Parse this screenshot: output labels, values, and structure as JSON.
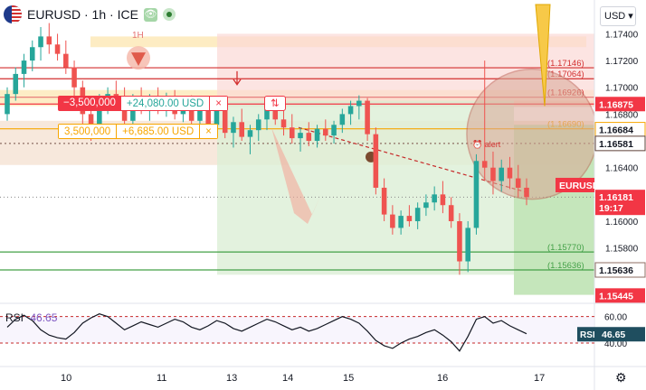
{
  "header": {
    "symbol": "EURUSD · 1h · ICE",
    "eye_icon": "eye-icon",
    "status_icon": "market-status-dot",
    "currency": "USD",
    "currency_arrow": "▾"
  },
  "colors": {
    "up": "#26a69a",
    "down": "#ef5350",
    "accent_red": "#f23645",
    "green_line": "#43a047",
    "orange": "#f7a600",
    "rsi": "#7e57c2"
  },
  "drawing_labels": {
    "timeframe_marker": "1H",
    "alert": "alert",
    "cross_icon": "×",
    "order_icon": "⇅"
  },
  "positions": [
    {
      "qty": "−3,500,000",
      "pnl": "+24,080.00 USD",
      "close": "×",
      "side": "short"
    },
    {
      "qty": "3,500,000",
      "pnl": "+6,685.00 USD",
      "close": "×",
      "side": "long"
    }
  ],
  "price_axis": {
    "ticks": [
      "1.17400",
      "1.17200",
      "1.17000",
      "1.16800",
      "1.16600",
      "1.16400",
      "1.16200",
      "1.16000",
      "1.15800"
    ],
    "labels": [
      {
        "text": "1.16875",
        "kind": "red"
      },
      {
        "text": "1.16684",
        "kind": "orange"
      },
      {
        "text": "1.16581",
        "kind": "dark"
      },
      {
        "text": "EURUSD",
        "kind": "red"
      },
      {
        "text": "1.16181",
        "kind": "red"
      },
      {
        "text": "19:17",
        "kind": "red"
      },
      {
        "text": "1.15636",
        "kind": "dark"
      },
      {
        "text": "1.15445",
        "kind": "red"
      }
    ],
    "level_texts": [
      "(1.17146)",
      "(1.17064)",
      "(1.16926)",
      "(1.16690)",
      "(1.15770)",
      "(1.15636)"
    ]
  },
  "time_axis": {
    "labels": [
      "10",
      "11",
      "13",
      "14",
      "15",
      "16",
      "17"
    ]
  },
  "rsi": {
    "label": "RSI",
    "value": "46.65",
    "axis_ticks": [
      "60.00",
      "40.00"
    ],
    "badge_label": "RSI",
    "badge_value": "46.65"
  },
  "footer": {
    "settings_icon": "gear-icon"
  },
  "chart_data": {
    "type": "candlestick",
    "candles": [
      [
        1.168,
        1.17,
        1.1675,
        1.1695
      ],
      [
        1.1695,
        1.1715,
        1.169,
        1.171
      ],
      [
        1.171,
        1.1725,
        1.17,
        1.172
      ],
      [
        1.172,
        1.1735,
        1.1712,
        1.173
      ],
      [
        1.173,
        1.1745,
        1.172,
        1.1738
      ],
      [
        1.1738,
        1.1748,
        1.1725,
        1.1732
      ],
      [
        1.1732,
        1.174,
        1.172,
        1.1725
      ],
      [
        1.1725,
        1.1735,
        1.171,
        1.1715
      ],
      [
        1.1715,
        1.172,
        1.169,
        1.17
      ],
      [
        1.17,
        1.1705,
        1.167,
        1.168
      ],
      [
        1.168,
        1.169,
        1.166,
        1.167
      ],
      [
        1.167,
        1.1695,
        1.1665,
        1.169
      ],
      [
        1.169,
        1.17,
        1.168,
        1.1695
      ],
      [
        1.1695,
        1.1705,
        1.1685,
        1.169
      ],
      [
        1.169,
        1.17,
        1.167,
        1.1675
      ],
      [
        1.1675,
        1.1695,
        1.167,
        1.169
      ],
      [
        1.169,
        1.17,
        1.168,
        1.1685
      ],
      [
        1.1685,
        1.1695,
        1.1675,
        1.169
      ],
      [
        1.169,
        1.17,
        1.168,
        1.1684
      ],
      [
        1.1684,
        1.1696,
        1.1678,
        1.1692
      ],
      [
        1.1692,
        1.1698,
        1.1676,
        1.168
      ],
      [
        1.168,
        1.1692,
        1.1674,
        1.1688
      ],
      [
        1.1688,
        1.1694,
        1.167,
        1.1675
      ],
      [
        1.1675,
        1.169,
        1.1672,
        1.1686
      ],
      [
        1.1686,
        1.1693,
        1.1668,
        1.1672
      ],
      [
        1.1672,
        1.1688,
        1.1665,
        1.1684
      ],
      [
        1.1684,
        1.169,
        1.1662,
        1.1666
      ],
      [
        1.1666,
        1.1678,
        1.1655,
        1.1674
      ],
      [
        1.1674,
        1.1684,
        1.166,
        1.1663
      ],
      [
        1.1663,
        1.1672,
        1.165,
        1.1668
      ],
      [
        1.1668,
        1.168,
        1.166,
        1.1676
      ],
      [
        1.1676,
        1.1688,
        1.1668,
        1.1684
      ],
      [
        1.1684,
        1.169,
        1.1672,
        1.1676
      ],
      [
        1.1676,
        1.1684,
        1.1664,
        1.167
      ],
      [
        1.167,
        1.168,
        1.1658,
        1.1662
      ],
      [
        1.1662,
        1.167,
        1.1652,
        1.1666
      ],
      [
        1.1666,
        1.1674,
        1.1656,
        1.166
      ],
      [
        1.166,
        1.1672,
        1.1655,
        1.1669
      ],
      [
        1.1669,
        1.1676,
        1.166,
        1.1664
      ],
      [
        1.1664,
        1.1675,
        1.1658,
        1.1672
      ],
      [
        1.1672,
        1.1684,
        1.1666,
        1.168
      ],
      [
        1.168,
        1.169,
        1.1672,
        1.1686
      ],
      [
        1.1686,
        1.1694,
        1.1676,
        1.169
      ],
      [
        1.169,
        1.1692,
        1.166,
        1.1665
      ],
      [
        1.1665,
        1.167,
        1.162,
        1.1625
      ],
      [
        1.1625,
        1.1632,
        1.16,
        1.1605
      ],
      [
        1.1605,
        1.1612,
        1.159,
        1.1595
      ],
      [
        1.1595,
        1.1608,
        1.159,
        1.1604
      ],
      [
        1.1604,
        1.1612,
        1.1596,
        1.16
      ],
      [
        1.16,
        1.1614,
        1.1594,
        1.161
      ],
      [
        1.161,
        1.162,
        1.1604,
        1.1614
      ],
      [
        1.1614,
        1.1626,
        1.1608,
        1.162
      ],
      [
        1.162,
        1.163,
        1.1606,
        1.1612
      ],
      [
        1.1612,
        1.1618,
        1.1595,
        1.16
      ],
      [
        1.16,
        1.1606,
        1.156,
        1.157
      ],
      [
        1.157,
        1.16,
        1.1562,
        1.1595
      ],
      [
        1.1595,
        1.165,
        1.159,
        1.1645
      ],
      [
        1.1645,
        1.172,
        1.163,
        1.164
      ],
      [
        1.164,
        1.1652,
        1.162,
        1.163
      ],
      [
        1.163,
        1.1646,
        1.1622,
        1.164
      ],
      [
        1.164,
        1.1648,
        1.1624,
        1.1632
      ],
      [
        1.1632,
        1.1642,
        1.1618,
        1.1625
      ],
      [
        1.1625,
        1.1632,
        1.1612,
        1.1618
      ]
    ],
    "rsi_values": [
      52,
      58,
      61,
      57,
      50,
      46,
      44,
      43,
      48,
      55,
      59,
      62,
      60,
      55,
      50,
      53,
      56,
      54,
      52,
      55,
      58,
      56,
      52,
      50,
      53,
      57,
      55,
      51,
      49,
      52,
      55,
      58,
      56,
      53,
      50,
      52,
      49,
      51,
      54,
      57,
      60,
      58,
      55,
      49,
      42,
      38,
      36,
      40,
      43,
      45,
      48,
      50,
      46,
      41,
      34,
      45,
      58,
      60,
      55,
      57,
      53,
      50,
      47
    ],
    "ylim": [
      1.154,
      1.1745
    ]
  }
}
